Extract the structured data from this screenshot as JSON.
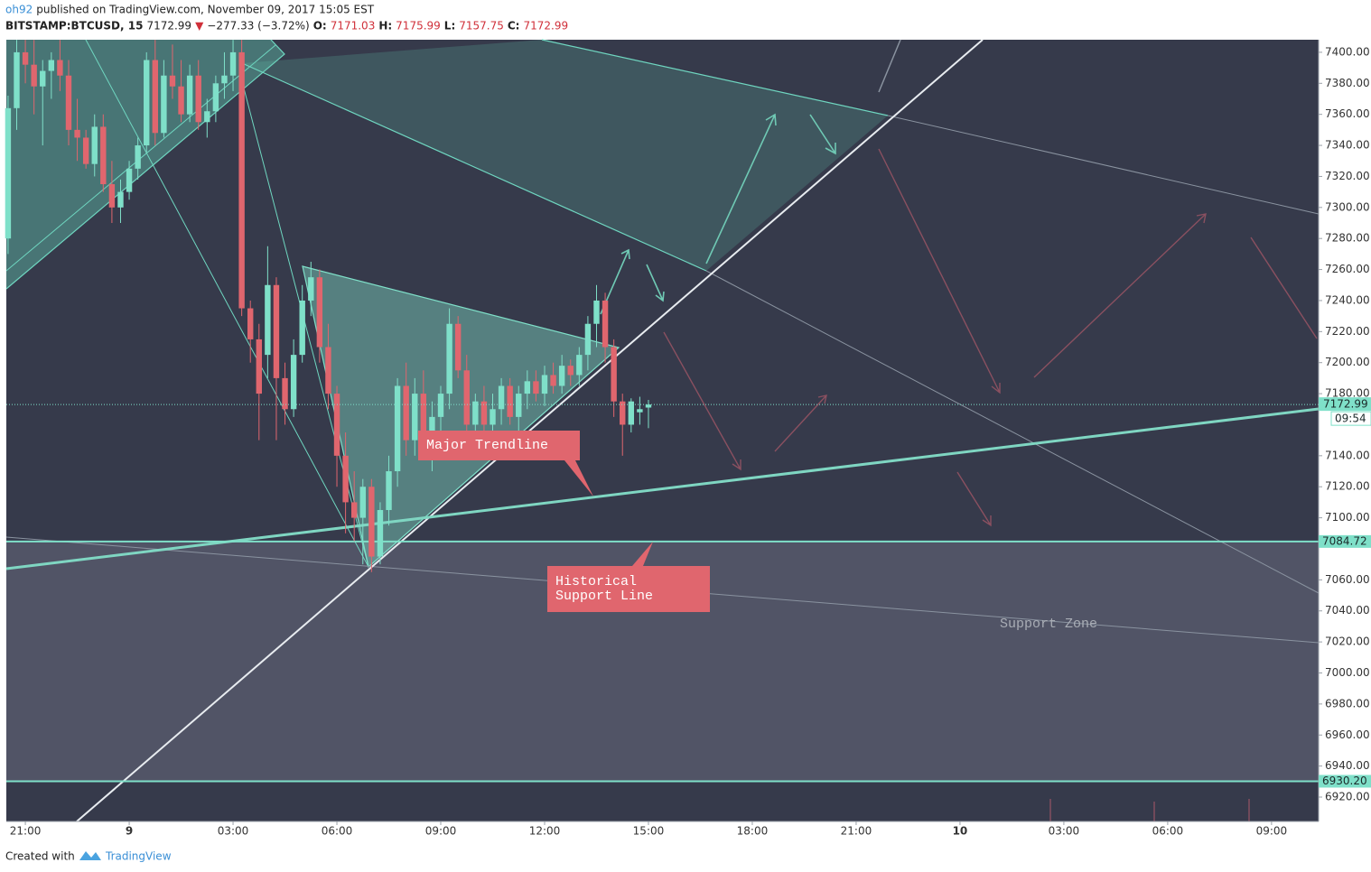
{
  "header": {
    "user": "oh92",
    "published": "published on TradingView.com, November 09, 2017 15:05 EST",
    "symbol": "BITSTAMP:BTCUSD, 15",
    "last": 7172.99,
    "change_arrow": "▼",
    "change": "−277.33 (−3.72%)",
    "o_label": "O:",
    "open": 7171.03,
    "h_label": "H:",
    "high": 7175.99,
    "l_label": "L:",
    "low": 7157.75,
    "c_label": "C:",
    "close": 7172.99
  },
  "footer": {
    "created_with": "Created with",
    "brand": "TradingView"
  },
  "annotations": {
    "major_trendline": "Major Trendline",
    "historical_support": [
      "Historical",
      "Support Line"
    ],
    "support_zone": "Support Zone"
  },
  "chart_data": {
    "type": "candlestick",
    "up_color": "#7fe0c9",
    "down_color": "#e0666e",
    "x": [
      20.5,
      20.75,
      21,
      21.25,
      21.5,
      21.75,
      22,
      22.25,
      22.5,
      22.75,
      23,
      23.25,
      23.5,
      23.75,
      24,
      24.25,
      24.5,
      24.75,
      25,
      25.25,
      25.5,
      25.75,
      26,
      26.25,
      26.5,
      26.75,
      27,
      27.25,
      27.5,
      27.75,
      28,
      28.25,
      28.5,
      28.75,
      29,
      29.25,
      29.5,
      29.75,
      30,
      30.25,
      30.5,
      30.75,
      31,
      31.25,
      31.5,
      31.75,
      32,
      32.25,
      32.5,
      32.75,
      33,
      33.25,
      33.5,
      33.75,
      34,
      34.25,
      34.5,
      34.75,
      35,
      35.25,
      35.5,
      35.75,
      36,
      36.25,
      36.5,
      36.75,
      37,
      37.25,
      37.5,
      37.75,
      38,
      38.25,
      38.5,
      38.75,
      39
    ],
    "ohlc": [
      [
        7280,
        7372,
        7270,
        7364
      ],
      [
        7364,
        7408,
        7350,
        7400
      ],
      [
        7400,
        7408,
        7380,
        7392
      ],
      [
        7392,
        7408,
        7360,
        7378
      ],
      [
        7378,
        7395,
        7340,
        7388
      ],
      [
        7388,
        7400,
        7370,
        7395
      ],
      [
        7395,
        7408,
        7375,
        7385
      ],
      [
        7385,
        7395,
        7340,
        7350
      ],
      [
        7350,
        7370,
        7330,
        7345
      ],
      [
        7345,
        7350,
        7325,
        7328
      ],
      [
        7328,
        7360,
        7320,
        7352
      ],
      [
        7352,
        7360,
        7310,
        7315
      ],
      [
        7315,
        7330,
        7290,
        7300
      ],
      [
        7300,
        7318,
        7290,
        7310
      ],
      [
        7310,
        7330,
        7305,
        7325
      ],
      [
        7325,
        7345,
        7318,
        7340
      ],
      [
        7340,
        7400,
        7335,
        7395
      ],
      [
        7395,
        7408,
        7340,
        7348
      ],
      [
        7348,
        7395,
        7345,
        7385
      ],
      [
        7385,
        7405,
        7370,
        7378
      ],
      [
        7378,
        7395,
        7355,
        7360
      ],
      [
        7360,
        7392,
        7355,
        7385
      ],
      [
        7385,
        7395,
        7350,
        7355
      ],
      [
        7355,
        7370,
        7345,
        7362
      ],
      [
        7362,
        7385,
        7355,
        7380
      ],
      [
        7380,
        7400,
        7370,
        7385
      ],
      [
        7385,
        7408,
        7375,
        7400
      ],
      [
        7400,
        7408,
        7230,
        7235
      ],
      [
        7235,
        7240,
        7200,
        7215
      ],
      [
        7215,
        7225,
        7150,
        7180
      ],
      [
        7205,
        7275,
        7190,
        7250
      ],
      [
        7250,
        7255,
        7150,
        7190
      ],
      [
        7190,
        7200,
        7160,
        7170
      ],
      [
        7170,
        7215,
        7165,
        7205
      ],
      [
        7205,
        7250,
        7200,
        7240
      ],
      [
        7240,
        7265,
        7230,
        7255
      ],
      [
        7255,
        7260,
        7200,
        7210
      ],
      [
        7210,
        7225,
        7170,
        7180
      ],
      [
        7180,
        7185,
        7120,
        7140
      ],
      [
        7140,
        7155,
        7090,
        7110
      ],
      [
        7110,
        7130,
        7085,
        7100
      ],
      [
        7100,
        7125,
        7070,
        7120
      ],
      [
        7120,
        7125,
        7065,
        7075
      ],
      [
        7075,
        7110,
        7070,
        7105
      ],
      [
        7105,
        7140,
        7095,
        7130
      ],
      [
        7130,
        7190,
        7120,
        7185
      ],
      [
        7185,
        7200,
        7140,
        7150
      ],
      [
        7150,
        7190,
        7140,
        7180
      ],
      [
        7180,
        7195,
        7145,
        7150
      ],
      [
        7150,
        7175,
        7130,
        7165
      ],
      [
        7165,
        7185,
        7155,
        7180
      ],
      [
        7180,
        7235,
        7170,
        7225
      ],
      [
        7225,
        7230,
        7190,
        7195
      ],
      [
        7195,
        7205,
        7150,
        7160
      ],
      [
        7160,
        7180,
        7140,
        7175
      ],
      [
        7175,
        7185,
        7150,
        7160
      ],
      [
        7160,
        7180,
        7140,
        7170
      ],
      [
        7170,
        7190,
        7160,
        7185
      ],
      [
        7185,
        7190,
        7160,
        7165
      ],
      [
        7165,
        7185,
        7155,
        7180
      ],
      [
        7180,
        7195,
        7170,
        7188
      ],
      [
        7188,
        7195,
        7175,
        7180
      ],
      [
        7180,
        7198,
        7172,
        7192
      ],
      [
        7192,
        7200,
        7180,
        7185
      ],
      [
        7185,
        7205,
        7180,
        7198
      ],
      [
        7198,
        7202,
        7185,
        7192
      ],
      [
        7192,
        7210,
        7185,
        7205
      ],
      [
        7205,
        7230,
        7195,
        7225
      ],
      [
        7225,
        7250,
        7210,
        7240
      ],
      [
        7240,
        7245,
        7200,
        7210
      ],
      [
        7210,
        7215,
        7165,
        7175
      ],
      [
        7175,
        7180,
        7140,
        7160
      ],
      [
        7160,
        7177,
        7155,
        7175
      ],
      [
        7168,
        7178,
        7160,
        7170
      ],
      [
        7171.03,
        7175.99,
        7157.75,
        7172.99
      ]
    ],
    "xlim": [
      20.45,
      58.36
    ],
    "ylim": [
      6904.3,
      7408.1
    ],
    "xticks": [
      {
        "value": 21,
        "label": "21:00"
      },
      {
        "value": 24,
        "label": "9"
      },
      {
        "value": 27,
        "label": "03:00"
      },
      {
        "value": 30,
        "label": "06:00"
      },
      {
        "value": 33,
        "label": "09:00"
      },
      {
        "value": 36,
        "label": "12:00"
      },
      {
        "value": 39,
        "label": "15:00"
      },
      {
        "value": 42,
        "label": "18:00"
      },
      {
        "value": 45,
        "label": "21:00"
      },
      {
        "value": 48,
        "label": "10"
      },
      {
        "value": 51,
        "label": "03:00"
      },
      {
        "value": 54,
        "label": "06:00"
      },
      {
        "value": 57,
        "label": "09:00"
      }
    ],
    "yticks": [
      {
        "value": 7400,
        "label": "7400.00"
      },
      {
        "value": 7380,
        "label": "7380.00"
      },
      {
        "value": 7360,
        "label": "7360.00"
      },
      {
        "value": 7340,
        "label": "7340.00"
      },
      {
        "value": 7320,
        "label": "7320.00"
      },
      {
        "value": 7300,
        "label": "7300.00"
      },
      {
        "value": 7280,
        "label": "7280.00"
      },
      {
        "value": 7260,
        "label": "7260.00"
      },
      {
        "value": 7240,
        "label": "7240.00"
      },
      {
        "value": 7220,
        "label": "7220.00"
      },
      {
        "value": 7200,
        "label": "7200.00"
      },
      {
        "value": 7180,
        "label": "7180.00"
      },
      {
        "value": 7140,
        "label": "7140.00"
      },
      {
        "value": 7120,
        "label": "7120.00"
      },
      {
        "value": 7100,
        "label": "7100.00"
      },
      {
        "value": 7060,
        "label": "7060.00"
      },
      {
        "value": 7040,
        "label": "7040.00"
      },
      {
        "value": 7020,
        "label": "7020.00"
      },
      {
        "value": 7000,
        "label": "7000.00"
      },
      {
        "value": 6980,
        "label": "6980.00"
      },
      {
        "value": 6960,
        "label": "6960.00"
      },
      {
        "value": 6940,
        "label": "6940.00"
      },
      {
        "value": 6920,
        "label": "6920.00"
      }
    ],
    "last_price": {
      "value": 7172.99,
      "label": "7172.99",
      "countdown": "09:54",
      "color": "#7fe0c9"
    },
    "levels": [
      {
        "value": 7084.72,
        "label": "7084.72"
      },
      {
        "value": 6930.2,
        "label": "6930.20"
      }
    ],
    "level_color": "#7fe0c9"
  }
}
